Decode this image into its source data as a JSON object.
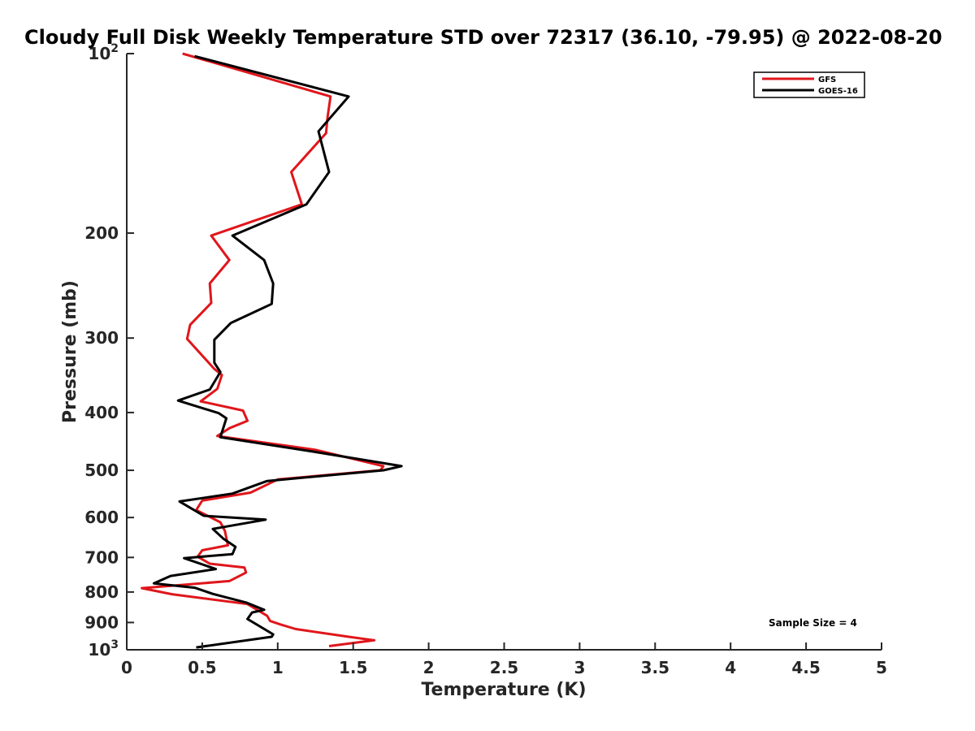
{
  "chart_data": {
    "type": "line",
    "title": "Cloudy Full Disk Weekly Temperature STD over 72317 (36.10, -79.95) @ 2022-08-20",
    "xlabel": "Temperature (K)",
    "ylabel": "Pressure (mb)",
    "xlim": [
      0,
      5
    ],
    "ylim": [
      100,
      1000
    ],
    "y_scale": "log",
    "y_reversed": true,
    "grid": false,
    "legend_position": "top-right",
    "x_ticks": [
      {
        "value": 0,
        "label": "0"
      },
      {
        "value": 0.5,
        "label": "0.5"
      },
      {
        "value": 1,
        "label": "1"
      },
      {
        "value": 1.5,
        "label": "1.5"
      },
      {
        "value": 2,
        "label": "2"
      },
      {
        "value": 2.5,
        "label": "2.5"
      },
      {
        "value": 3,
        "label": "3"
      },
      {
        "value": 3.5,
        "label": "3.5"
      },
      {
        "value": 4,
        "label": "4"
      },
      {
        "value": 4.5,
        "label": "4.5"
      },
      {
        "value": 5,
        "label": "5"
      }
    ],
    "y_ticks": [
      {
        "value": 100,
        "base": "10",
        "exp": "2"
      },
      {
        "value": 200,
        "label": "200"
      },
      {
        "value": 300,
        "label": "300"
      },
      {
        "value": 400,
        "label": "400"
      },
      {
        "value": 500,
        "label": "500"
      },
      {
        "value": 600,
        "label": "600"
      },
      {
        "value": 700,
        "label": "700"
      },
      {
        "value": 800,
        "label": "800"
      },
      {
        "value": 900,
        "label": "900"
      },
      {
        "value": 1000,
        "base": "10",
        "exp": "3"
      }
    ],
    "annotation": "Sample Size = 4",
    "series": [
      {
        "name": "GFS",
        "color": "#e0161b",
        "x": [
          0.37,
          1.35,
          1.33,
          1.32,
          1.09,
          1.16,
          0.56,
          0.68,
          0.55,
          0.56,
          0.42,
          0.4,
          0.58,
          0.63,
          0.6,
          0.49,
          0.77,
          0.8,
          0.68,
          0.6,
          1.25,
          1.7,
          1.68,
          1.0,
          0.82,
          0.5,
          0.46,
          0.62,
          0.65,
          0.67,
          0.5,
          0.47,
          0.55,
          0.78,
          0.79,
          0.68,
          0.1,
          0.3,
          0.8,
          0.93,
          0.95,
          1.02,
          1.12,
          1.47,
          1.64,
          1.34
        ],
        "y": [
          100,
          118,
          128,
          136,
          158,
          179,
          202,
          222,
          243,
          262,
          285,
          301,
          338,
          346,
          365,
          383,
          397,
          413,
          425,
          438,
          462,
          492,
          500,
          518,
          545,
          562,
          583,
          611,
          632,
          668,
          681,
          698,
          717,
          728,
          742,
          767,
          788,
          807,
          838,
          877,
          895,
          907,
          923,
          951,
          964,
          986
        ]
      },
      {
        "name": "GOES-16",
        "color": "#000000",
        "x": [
          0.45,
          1.47,
          1.27,
          1.34,
          1.19,
          0.7,
          0.91,
          0.97,
          0.96,
          0.69,
          0.58,
          0.58,
          0.62,
          0.55,
          0.34,
          0.61,
          0.66,
          0.62,
          1.23,
          1.82,
          1.7,
          0.93,
          0.7,
          0.35,
          0.51,
          0.92,
          0.57,
          0.64,
          0.72,
          0.7,
          0.38,
          0.59,
          0.29,
          0.18,
          0.45,
          0.57,
          0.79,
          0.91,
          0.83,
          0.8,
          0.97,
          0.96,
          0.46
        ],
        "y": [
          101,
          118,
          135,
          158,
          179,
          202,
          222,
          243,
          263,
          283,
          302,
          330,
          342,
          366,
          382,
          401,
          409,
          440,
          465,
          492,
          500,
          521,
          547,
          564,
          596,
          605,
          627,
          651,
          672,
          691,
          702,
          732,
          752,
          774,
          787,
          806,
          833,
          857,
          866,
          888,
          942,
          951,
          991
        ]
      }
    ]
  }
}
